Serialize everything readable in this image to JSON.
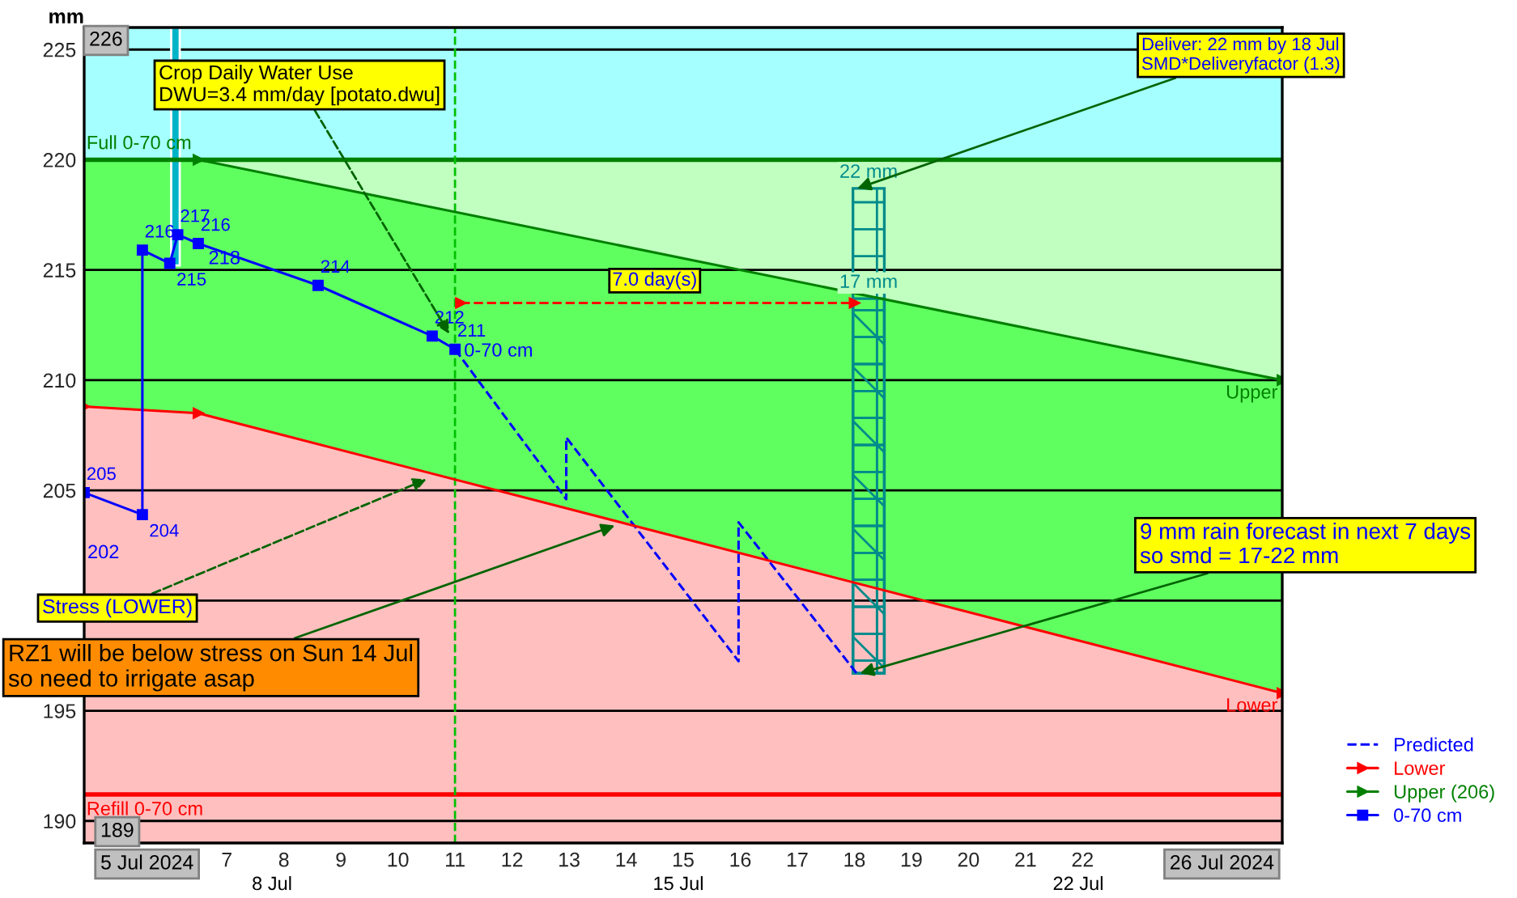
{
  "chart_data": {
    "type": "line",
    "ylabel": "mm",
    "xlim": [
      5,
      26
    ],
    "ylim": [
      189,
      226
    ],
    "yticks": [
      190,
      195,
      {
        "value": 200,
        "label": null
      },
      205,
      210,
      215,
      220,
      225
    ],
    "xticks": [
      {
        "value": 7.5,
        "label": "7"
      },
      {
        "value": 8.5,
        "label": "8"
      },
      {
        "value": 9.5,
        "label": "9"
      },
      {
        "value": 10.5,
        "label": "10"
      },
      {
        "value": 11.5,
        "label": "11"
      },
      {
        "value": 12.5,
        "label": "12"
      },
      {
        "value": 13.5,
        "label": "13"
      },
      {
        "value": 14.5,
        "label": "14"
      },
      {
        "value": 15.5,
        "label": "15"
      },
      {
        "value": 16.5,
        "label": "16"
      },
      {
        "value": 17.5,
        "label": "17"
      },
      {
        "value": 18.5,
        "label": "18"
      },
      {
        "value": 19.5,
        "label": "19"
      },
      {
        "value": 20.5,
        "label": "20"
      },
      {
        "value": 21.5,
        "label": "21"
      },
      {
        "value": 22.5,
        "label": "22"
      }
    ],
    "grid": "y",
    "legend": "bottom right",
    "bands": [
      {
        "axis": "y",
        "from": 220,
        "to": 226,
        "color": "#a6ffff"
      }
    ],
    "ref_lines": [
      {
        "axis": "y",
        "value": 220,
        "label": "Full 0-70 cm",
        "color": "#008000"
      },
      {
        "axis": "y",
        "value": 191.2,
        "label": "Refill 0-70 cm",
        "color": "#ff0000"
      },
      {
        "axis": "x",
        "value": 11.5,
        "color": "#00c000",
        "line_style": "dashed"
      }
    ],
    "series": [
      {
        "type": "bar",
        "color": "#00b4c8",
        "x": [
          6.6
        ],
        "base": [
          215.2
        ],
        "values": [
          10.8
        ]
      },
      {
        "type": "bar",
        "color": "#008b8b",
        "x": [
          18.75
        ],
        "base": [
          196.7
        ],
        "values": [
          22
        ],
        "value_labels": [
          "22 mm"
        ]
      },
      {
        "type": "bar",
        "color": "#008b8b",
        "x": [
          18.75
        ],
        "base": [
          196.7
        ],
        "values": [
          17
        ],
        "value_labels": [
          "17 mm"
        ]
      },
      {
        "color": "#ff0000",
        "line_style": "dashed",
        "marker": "triangle",
        "x": [
          11.6,
          18.5
        ],
        "values": [
          213.5,
          213.5
        ]
      },
      {
        "name": "Predicted",
        "color": "#0000ff",
        "line_style": "dashed",
        "x": [
          11.5,
          13.45,
          13.45,
          16.47,
          16.47,
          18.54
        ],
        "values": [
          211.4,
          204.6,
          207.4,
          197.25,
          203.55,
          196.7
        ]
      },
      {
        "type": "area",
        "name": "Lower",
        "color": "#ff0000",
        "line_style": "solid",
        "marker": "triangle",
        "x": [
          5,
          7,
          26
        ],
        "values": [
          208.8,
          208.5,
          195.8
        ]
      },
      {
        "name": "Upper (206)",
        "color": "#008000",
        "line_style": "solid",
        "marker": "triangle",
        "x": [
          7,
          26
        ],
        "values": [
          220,
          210
        ]
      },
      {
        "name": "0-70 cm",
        "color": "#0000ff",
        "line_style": "solid",
        "marker": "square",
        "x": [
          5,
          6.02,
          6.02,
          6.5,
          6.64,
          7.0,
          9.1,
          11.1,
          11.5
        ],
        "values": [
          204.9,
          203.9,
          215.9,
          215.3,
          216.6,
          216.2,
          214.3,
          212.0,
          211.4
        ],
        "value_labels": [
          "205",
          "204",
          "216",
          "215",
          "217",
          "216",
          "214",
          "212",
          "211"
        ]
      }
    ],
    "annotations": [
      {
        "text": "Crop Daily Water Use\nDWU=3.4 mm/day [potato.dwu]",
        "x": 11.4,
        "y": 212.1
      },
      {
        "text": "Stress (LOWER)",
        "x": 11.0,
        "y": 205.5
      },
      {
        "text": "RZ1 will be below stress on Sun 14 Jul\nso need to irrigate asap",
        "x": 14.3,
        "y": 203.4
      },
      {
        "text": "Deliver: 22 mm by 18 Jul\nSMD*Deliveryfactor (1.3)",
        "x": 18.55,
        "y": 218.7
      },
      {
        "text": "9 mm rain forecast in next 7 days\nso smd = 17-22 mm",
        "x": 18.6,
        "y": 196.7
      },
      {
        "text": "7.0 day(s)",
        "x": 15.0,
        "y": 213.5
      },
      {
        "text": "Upper",
        "x": 26,
        "y": 210
      },
      {
        "text": "Lower",
        "x": 26,
        "y": 195.8
      },
      {
        "text": "218",
        "x": 7.1,
        "y": 216.2
      },
      "226",
      "189",
      "5 Jul 2024",
      "26 Jul 2024",
      "8 Jul",
      "15 Jul",
      "22 Jul",
      "202"
    ]
  }
}
